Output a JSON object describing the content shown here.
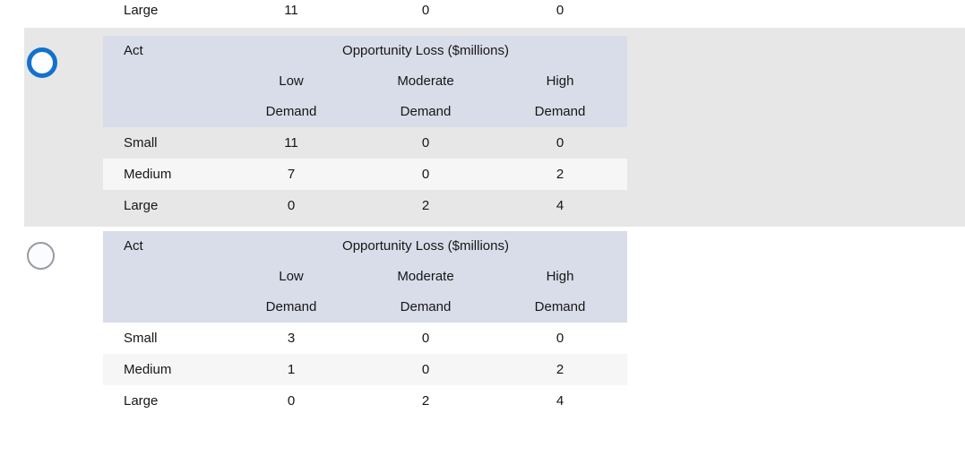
{
  "colors": {
    "selected_band_background": "#e7e7e7",
    "table_header_background": "#d9dde9",
    "row_stripe": "#f6f6f6",
    "radio_selected_ring": "#1272cc",
    "radio_unselected_ring": "#989ba1",
    "text": "#161616"
  },
  "partial_row": {
    "label": "Large",
    "values": [
      "11",
      "0",
      "0"
    ]
  },
  "options": [
    {
      "selected": true,
      "table": {
        "corner_label": "Act",
        "span_header": "Opportunity Loss ($millions)",
        "col_headers": [
          "Low",
          "Moderate",
          "High"
        ],
        "sub_headers": [
          "Demand",
          "Demand",
          "Demand"
        ],
        "rows": [
          {
            "label": "Small",
            "values": [
              "11",
              "0",
              "0"
            ]
          },
          {
            "label": "Medium",
            "values": [
              "7",
              "0",
              "2"
            ]
          },
          {
            "label": "Large",
            "values": [
              "0",
              "2",
              "4"
            ]
          }
        ]
      }
    },
    {
      "selected": false,
      "table": {
        "corner_label": "Act",
        "span_header": "Opportunity Loss ($millions)",
        "col_headers": [
          "Low",
          "Moderate",
          "High"
        ],
        "sub_headers": [
          "Demand",
          "Demand",
          "Demand"
        ],
        "rows": [
          {
            "label": "Small",
            "values": [
              "3",
              "0",
              "0"
            ]
          },
          {
            "label": "Medium",
            "values": [
              "1",
              "0",
              "2"
            ]
          },
          {
            "label": "Large",
            "values": [
              "0",
              "2",
              "4"
            ]
          }
        ]
      }
    }
  ]
}
